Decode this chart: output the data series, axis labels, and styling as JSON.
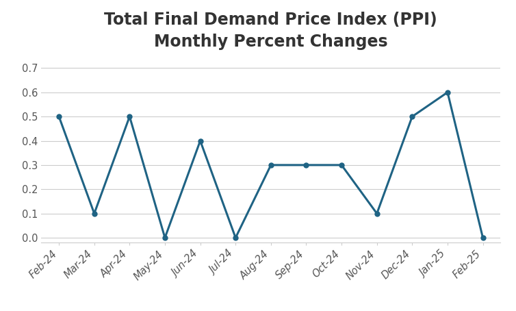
{
  "title": "Total Final Demand Price Index (PPI)\nMonthly Percent Changes",
  "x_labels": [
    "Feb-24",
    "Mar-24",
    "Apr-24",
    "May-24",
    "Jun-24",
    "Jul-24",
    "Aug-24",
    "Sep-24",
    "Oct-24",
    "Nov-24",
    "Dec-24",
    "Jan-25",
    "Feb-25"
  ],
  "y_values": [
    0.5,
    0.1,
    0.5,
    0.0,
    0.4,
    0.0,
    0.3,
    0.3,
    0.3,
    0.1,
    0.5,
    0.6,
    0.0
  ],
  "line_color": "#1f6384",
  "marker": "o",
  "marker_size": 5,
  "line_width": 2.2,
  "ylim": [
    -0.02,
    0.75
  ],
  "yticks": [
    0.0,
    0.1,
    0.2,
    0.3,
    0.4,
    0.5,
    0.6,
    0.7
  ],
  "background_color": "#ffffff",
  "grid_color": "#cccccc",
  "title_fontsize": 17,
  "title_fontweight": "bold",
  "title_color": "#333333",
  "tick_fontsize": 10.5,
  "tick_color": "#555555"
}
